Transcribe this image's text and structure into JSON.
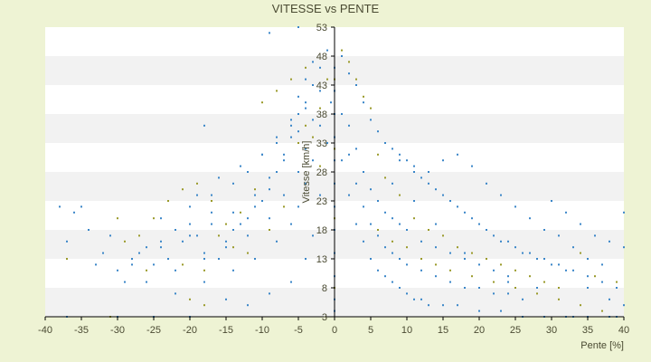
{
  "chart_data": {
    "type": "scatter",
    "title": "VITESSE vs PENTE",
    "xlabel": "Pente [%]",
    "ylabel": "Vitesse [km/h]",
    "xlim": [
      -40,
      40
    ],
    "ylim": [
      3,
      53
    ],
    "x_ticks": [
      "-40",
      "-35",
      "-30",
      "-25",
      "-20",
      "-15",
      "-10",
      "-5",
      "0",
      "5",
      "10",
      "15",
      "20",
      "25",
      "30",
      "35",
      "40"
    ],
    "y_ticks": [
      "3",
      "8",
      "13",
      "18",
      "23",
      "28",
      "33",
      "38",
      "43",
      "48",
      "53"
    ],
    "grid": "horizontal bands",
    "band_colors": [
      "#ffffff",
      "#f2f2f2"
    ],
    "point_colors": [
      "#3a86c8",
      "#9a9a2a"
    ],
    "axis_color": "#000000",
    "series": [
      {
        "point_color": "#3a86c8",
        "points": [
          [
            -38,
            22
          ],
          [
            -37,
            16
          ],
          [
            -36,
            21
          ],
          [
            -35,
            22
          ],
          [
            -34,
            18
          ],
          [
            -33,
            12
          ],
          [
            -32,
            14
          ],
          [
            -31,
            17
          ],
          [
            -30,
            11
          ],
          [
            -29,
            9
          ],
          [
            -28,
            12
          ],
          [
            -27,
            14
          ],
          [
            -26,
            15
          ],
          [
            -25,
            12
          ],
          [
            -24,
            16
          ],
          [
            -23,
            13
          ],
          [
            -22,
            18
          ],
          [
            -21,
            16
          ],
          [
            -20,
            19
          ],
          [
            -19,
            17
          ],
          [
            -18,
            14
          ],
          [
            -17,
            21
          ],
          [
            -16,
            13
          ],
          [
            -15,
            16
          ],
          [
            -14,
            18
          ],
          [
            -13,
            19
          ],
          [
            -12,
            20
          ],
          [
            -11,
            22
          ],
          [
            -10,
            23
          ],
          [
            -9,
            25
          ],
          [
            -8,
            28
          ],
          [
            -7,
            30
          ],
          [
            -6,
            34
          ],
          [
            -5,
            38
          ],
          [
            -4,
            40
          ],
          [
            -3,
            43
          ],
          [
            -2,
            46
          ],
          [
            -1,
            49
          ],
          [
            -37,
            3
          ],
          [
            -30,
            3
          ],
          [
            -25,
            3
          ],
          [
            -20,
            3
          ],
          [
            -15,
            6
          ],
          [
            -12,
            5
          ],
          [
            -9,
            7
          ],
          [
            -6,
            9
          ],
          [
            -4,
            13
          ],
          [
            -3,
            17
          ],
          [
            -2,
            24
          ],
          [
            -1,
            33
          ],
          [
            -0.5,
            40
          ],
          [
            -19,
            24
          ],
          [
            -16,
            27
          ],
          [
            -13,
            29
          ],
          [
            -10,
            31
          ],
          [
            -8,
            34
          ],
          [
            -6,
            37
          ],
          [
            -5,
            41
          ],
          [
            -4,
            44
          ],
          [
            -3,
            47
          ],
          [
            -18,
            36
          ],
          [
            -9,
            52
          ],
          [
            -5,
            53
          ],
          [
            -22,
            7
          ],
          [
            -18,
            9
          ],
          [
            -14,
            11
          ],
          [
            -11,
            13
          ],
          [
            -8,
            16
          ],
          [
            -6,
            19
          ],
          [
            -5,
            22
          ],
          [
            -4,
            26
          ],
          [
            -3,
            30
          ],
          [
            -2,
            36
          ],
          [
            -26,
            9
          ],
          [
            -22,
            11
          ],
          [
            -18,
            13
          ],
          [
            -15,
            15
          ],
          [
            -12,
            17
          ],
          [
            -9,
            20
          ],
          [
            -7,
            24
          ],
          [
            -5,
            28
          ],
          [
            -4,
            32
          ],
          [
            -3,
            37
          ],
          [
            -2,
            42
          ],
          [
            -28,
            13
          ],
          [
            -24,
            15
          ],
          [
            -20,
            17
          ],
          [
            -17,
            19
          ],
          [
            -14,
            21
          ],
          [
            -11,
            24
          ],
          [
            -9,
            27
          ],
          [
            -7,
            31
          ],
          [
            -5,
            35
          ],
          [
            -4,
            39
          ],
          [
            -24,
            20
          ],
          [
            -20,
            22
          ],
          [
            -17,
            24
          ],
          [
            -14,
            26
          ],
          [
            -12,
            28
          ],
          [
            -10,
            31
          ],
          [
            -8,
            33
          ],
          [
            -6,
            36
          ],
          [
            1,
            48
          ],
          [
            2,
            45
          ],
          [
            3,
            43
          ],
          [
            4,
            40
          ],
          [
            5,
            37
          ],
          [
            6,
            35
          ],
          [
            7,
            33
          ],
          [
            8,
            32
          ],
          [
            9,
            31
          ],
          [
            10,
            30
          ],
          [
            11,
            28
          ],
          [
            12,
            27
          ],
          [
            13,
            26
          ],
          [
            14,
            25
          ],
          [
            15,
            24
          ],
          [
            16,
            23
          ],
          [
            17,
            22
          ],
          [
            18,
            21
          ],
          [
            19,
            20
          ],
          [
            20,
            19
          ],
          [
            21,
            18
          ],
          [
            22,
            17
          ],
          [
            23,
            16
          ],
          [
            24,
            16
          ],
          [
            25,
            15
          ],
          [
            26,
            14
          ],
          [
            27,
            14
          ],
          [
            28,
            13
          ],
          [
            29,
            13
          ],
          [
            30,
            12
          ],
          [
            31,
            12
          ],
          [
            32,
            11
          ],
          [
            33,
            11
          ],
          [
            35,
            10
          ],
          [
            37,
            9
          ],
          [
            39,
            8
          ],
          [
            1,
            30
          ],
          [
            2,
            24
          ],
          [
            3,
            19
          ],
          [
            4,
            16
          ],
          [
            5,
            13
          ],
          [
            6,
            11
          ],
          [
            7,
            10
          ],
          [
            8,
            9
          ],
          [
            9,
            8
          ],
          [
            10,
            7
          ],
          [
            11,
            6
          ],
          [
            12,
            6
          ],
          [
            13,
            5
          ],
          [
            15,
            5
          ],
          [
            17,
            5
          ],
          [
            20,
            4
          ],
          [
            23,
            4
          ],
          [
            26,
            3
          ],
          [
            29,
            3
          ],
          [
            32,
            3
          ],
          [
            35,
            3
          ],
          [
            38,
            3
          ],
          [
            1,
            38
          ],
          [
            2,
            31
          ],
          [
            3,
            26
          ],
          [
            4,
            22
          ],
          [
            5,
            19
          ],
          [
            6,
            17
          ],
          [
            7,
            15
          ],
          [
            8,
            14
          ],
          [
            9,
            13
          ],
          [
            10,
            12
          ],
          [
            12,
            11
          ],
          [
            14,
            10
          ],
          [
            16,
            9
          ],
          [
            18,
            8
          ],
          [
            20,
            8
          ],
          [
            22,
            7
          ],
          [
            24,
            7
          ],
          [
            26,
            6
          ],
          [
            2,
            36
          ],
          [
            3,
            32
          ],
          [
            4,
            28
          ],
          [
            5,
            25
          ],
          [
            6,
            23
          ],
          [
            7,
            21
          ],
          [
            8,
            20
          ],
          [
            9,
            19
          ],
          [
            10,
            18
          ],
          [
            12,
            16
          ],
          [
            14,
            15
          ],
          [
            16,
            14
          ],
          [
            18,
            13
          ],
          [
            20,
            12
          ],
          [
            22,
            11
          ],
          [
            24,
            10
          ],
          [
            7,
            33
          ],
          [
            9,
            30
          ],
          [
            11,
            29
          ],
          [
            13,
            28
          ],
          [
            15,
            30
          ],
          [
            17,
            31
          ],
          [
            19,
            29
          ],
          [
            21,
            26
          ],
          [
            23,
            24
          ],
          [
            25,
            22
          ],
          [
            27,
            20
          ],
          [
            29,
            18
          ],
          [
            31,
            17
          ],
          [
            33,
            15
          ],
          [
            35,
            13
          ],
          [
            37,
            12
          ],
          [
            30,
            23
          ],
          [
            32,
            21
          ],
          [
            34,
            19
          ],
          [
            36,
            17
          ],
          [
            38,
            16
          ],
          [
            40,
            15
          ],
          [
            40,
            21
          ],
          [
            35,
            8
          ],
          [
            38,
            6
          ],
          [
            40,
            5
          ],
          [
            39,
            3
          ],
          [
            33,
            3
          ],
          [
            28,
            8
          ],
          [
            24,
            9
          ],
          [
            18,
            14
          ],
          [
            14,
            19
          ],
          [
            11,
            23
          ],
          [
            8,
            26
          ],
          [
            0,
            46
          ],
          [
            0,
            42
          ],
          [
            0,
            38
          ],
          [
            0,
            34
          ],
          [
            0,
            30
          ],
          [
            0,
            26
          ],
          [
            0,
            22
          ],
          [
            0,
            18
          ],
          [
            0,
            14
          ],
          [
            0,
            10
          ],
          [
            0,
            6
          ],
          [
            0,
            4
          ]
        ]
      },
      {
        "point_color": "#9a9a2a",
        "points": [
          [
            -37,
            13
          ],
          [
            -30,
            20
          ],
          [
            -29,
            16
          ],
          [
            -27,
            17
          ],
          [
            -25,
            20
          ],
          [
            -23,
            23
          ],
          [
            -21,
            25
          ],
          [
            -19,
            26
          ],
          [
            -17,
            23
          ],
          [
            -15,
            19
          ],
          [
            -13,
            21
          ],
          [
            -11,
            25
          ],
          [
            -10,
            40
          ],
          [
            -8,
            42
          ],
          [
            -6,
            44
          ],
          [
            -4,
            46
          ],
          [
            -3,
            34
          ],
          [
            -2,
            29
          ],
          [
            -31,
            3
          ],
          [
            -26,
            11
          ],
          [
            -21,
            12
          ],
          [
            -18,
            11
          ],
          [
            -16,
            17
          ],
          [
            -14,
            15
          ],
          [
            -12,
            14
          ],
          [
            -9,
            18
          ],
          [
            -7,
            22
          ],
          [
            -5,
            33
          ],
          [
            -4,
            36
          ],
          [
            -2,
            39
          ],
          [
            -1,
            44
          ],
          [
            -20,
            6
          ],
          [
            -18,
            5
          ],
          [
            1,
            49
          ],
          [
            2,
            47
          ],
          [
            3,
            44
          ],
          [
            4,
            41
          ],
          [
            5,
            39
          ],
          [
            6,
            31
          ],
          [
            7,
            27
          ],
          [
            9,
            24
          ],
          [
            11,
            20
          ],
          [
            13,
            18
          ],
          [
            15,
            17
          ],
          [
            17,
            15
          ],
          [
            19,
            14
          ],
          [
            21,
            13
          ],
          [
            23,
            12
          ],
          [
            25,
            11
          ],
          [
            27,
            10
          ],
          [
            29,
            9
          ],
          [
            31,
            8
          ],
          [
            34,
            14
          ],
          [
            36,
            10
          ],
          [
            39,
            9
          ],
          [
            6,
            18
          ],
          [
            8,
            16
          ],
          [
            10,
            15
          ],
          [
            12,
            13
          ],
          [
            14,
            12
          ],
          [
            16,
            11
          ],
          [
            19,
            10
          ],
          [
            22,
            9
          ],
          [
            25,
            8
          ],
          [
            28,
            7
          ],
          [
            31,
            6
          ],
          [
            34,
            5
          ],
          [
            37,
            4
          ],
          [
            0,
            44
          ],
          [
            0,
            32
          ],
          [
            0,
            20
          ],
          [
            0,
            8
          ]
        ]
      }
    ]
  }
}
